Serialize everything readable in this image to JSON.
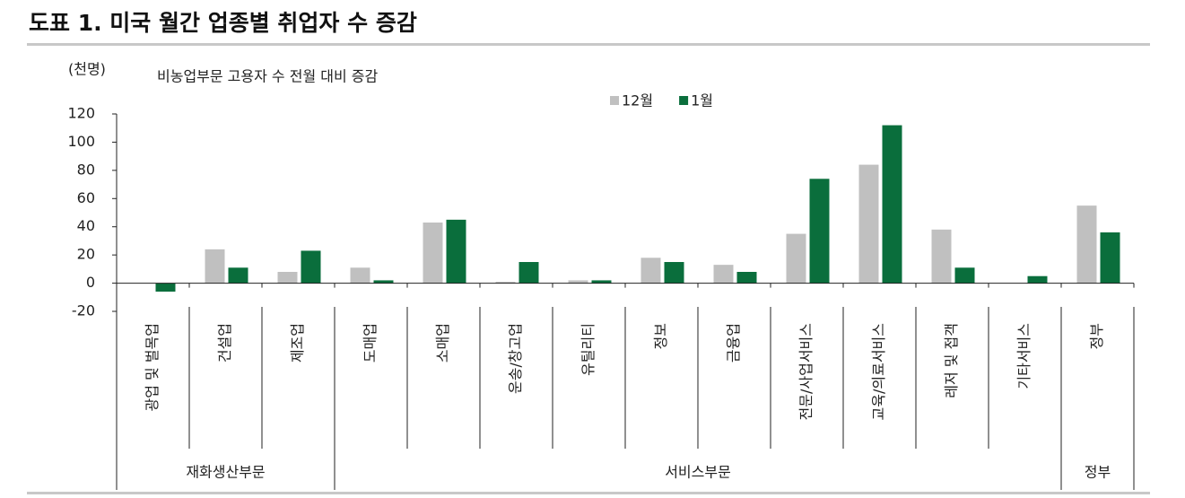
{
  "chart_data": {
    "type": "bar",
    "title": "도표 1. 미국 월간 업종별 취업자 수 증감",
    "y_unit": "(천명)",
    "subtitle": "비농업부문 고용자 수 전월 대비 증감",
    "categories": [
      "광업 및 벌목업",
      "건설업",
      "제조업",
      "도매업",
      "소매업",
      "운송/창고업",
      "유틸리티",
      "정보",
      "금융업",
      "전문/사업서비스",
      "교육/의료서비스",
      "레저 및 접객",
      "기타서비스",
      "정부"
    ],
    "series": [
      {
        "name": "12월",
        "color": "#c0c0c0",
        "values": [
          0,
          24,
          8,
          11,
          43,
          1,
          2,
          18,
          13,
          35,
          84,
          38,
          0,
          55
        ]
      },
      {
        "name": "1월",
        "color": "#0a6e3c",
        "values": [
          -6,
          11,
          23,
          2,
          45,
          15,
          2,
          15,
          8,
          74,
          112,
          11,
          5,
          36
        ]
      }
    ],
    "groups": [
      {
        "name": "재화생산부문",
        "members": [
          "광업 및 벌목업",
          "건설업",
          "제조업"
        ]
      },
      {
        "name": "서비스부문",
        "members": [
          "도매업",
          "소매업",
          "운송/창고업",
          "유틸리티",
          "정보",
          "금융업",
          "전문/사업서비스",
          "교육/의료서비스",
          "레저 및 접객",
          "기타서비스"
        ]
      },
      {
        "name": "정부",
        "members": [
          "정부"
        ]
      }
    ],
    "ylim": [
      -20,
      120
    ],
    "yticks": [
      -20,
      0,
      20,
      40,
      60,
      80,
      100,
      120
    ],
    "grid": false
  }
}
